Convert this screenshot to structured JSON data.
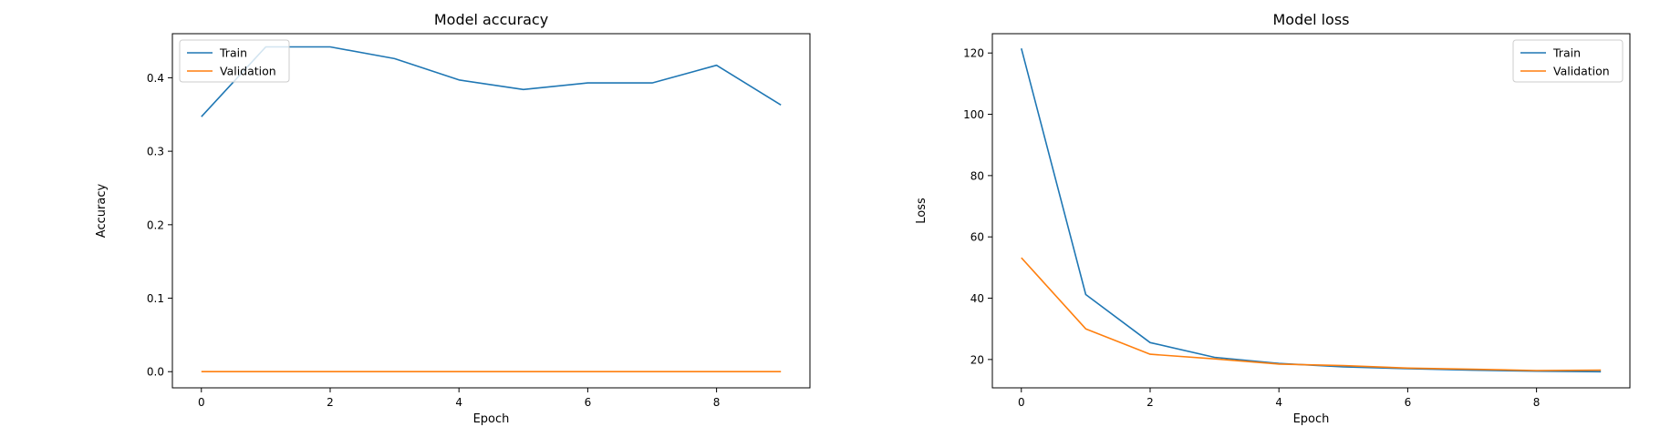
{
  "chart_data": [
    {
      "type": "line",
      "title": "Model accuracy",
      "xlabel": "Epoch",
      "ylabel": "Accuracy",
      "x": [
        0,
        1,
        2,
        3,
        4,
        5,
        6,
        7,
        8,
        9
      ],
      "xlim": [
        -0.45,
        9.45
      ],
      "ylim": [
        -0.022,
        0.46
      ],
      "xticks": [
        0,
        2,
        4,
        6,
        8
      ],
      "yticks": [
        0.0,
        0.1,
        0.2,
        0.3,
        0.4
      ],
      "ytick_labels": [
        "0.0",
        "0.1",
        "0.2",
        "0.3",
        "0.4"
      ],
      "legend_position": "upper left",
      "series": [
        {
          "name": "Train",
          "color": "#1f77b4",
          "values": [
            0.347,
            0.442,
            0.442,
            0.426,
            0.397,
            0.384,
            0.393,
            0.393,
            0.417,
            0.363
          ]
        },
        {
          "name": "Validation",
          "color": "#ff7f0e",
          "values": [
            0.0,
            0.0,
            0.0,
            0.0,
            0.0,
            0.0,
            0.0,
            0.0,
            0.0,
            0.0
          ]
        }
      ]
    },
    {
      "type": "line",
      "title": "Model loss",
      "xlabel": "Epoch",
      "ylabel": "Loss",
      "x": [
        0,
        1,
        2,
        3,
        4,
        5,
        6,
        7,
        8,
        9
      ],
      "xlim": [
        -0.45,
        9.45
      ],
      "ylim": [
        10.75,
        126.3
      ],
      "xticks": [
        0,
        2,
        4,
        6,
        8
      ],
      "yticks": [
        20,
        40,
        60,
        80,
        100,
        120
      ],
      "ytick_labels": [
        "20",
        "40",
        "60",
        "80",
        "100",
        "120"
      ],
      "legend_position": "upper right",
      "series": [
        {
          "name": "Train",
          "color": "#1f77b4",
          "values": [
            121.5,
            41.2,
            25.5,
            20.7,
            18.7,
            17.6,
            17.0,
            16.5,
            16.2,
            16.0
          ]
        },
        {
          "name": "Validation",
          "color": "#ff7f0e",
          "values": [
            53.2,
            30.0,
            21.7,
            20.2,
            18.5,
            18.0,
            17.2,
            16.8,
            16.4,
            16.5
          ]
        }
      ]
    }
  ]
}
